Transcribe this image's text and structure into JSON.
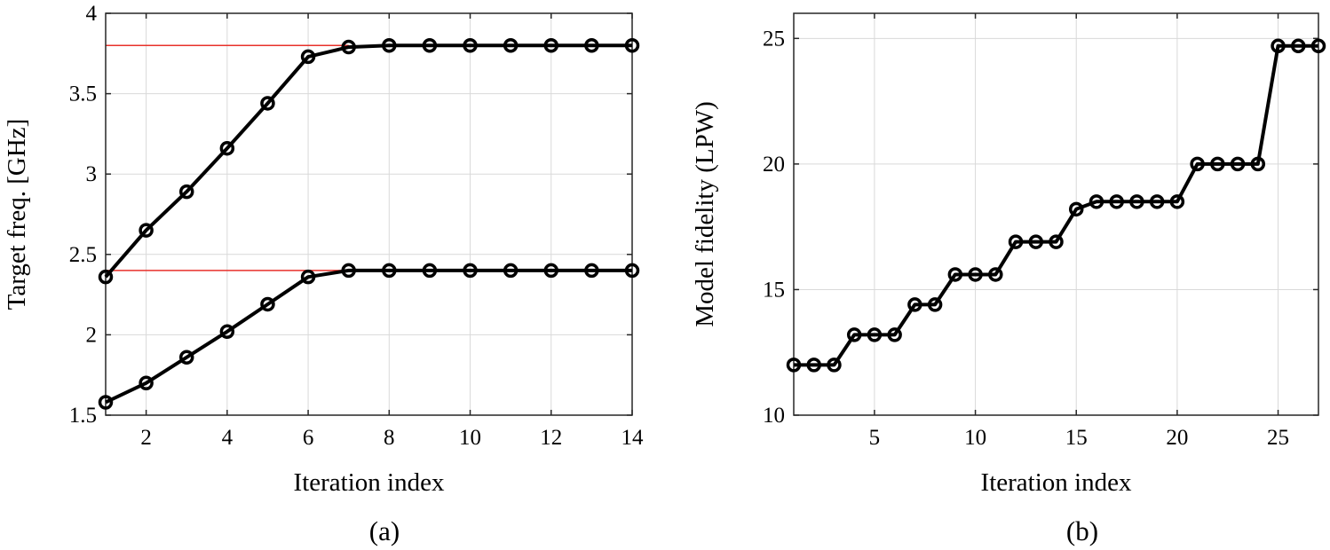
{
  "chart_data": [
    {
      "type": "line",
      "caption": "(a)",
      "xlabel": "Iteration index",
      "ylabel": "Target freq. [GHz]",
      "xlim": [
        1,
        14
      ],
      "ylim": [
        1.5,
        4
      ],
      "xticks": [
        2,
        4,
        6,
        8,
        10,
        12,
        14
      ],
      "yticks": [
        1.5,
        2,
        2.5,
        3,
        3.5,
        4
      ],
      "ytick_labels": [
        "1.5",
        "2",
        "2.5",
        "3",
        "3.5",
        "4"
      ],
      "grid": true,
      "marker": "circle",
      "x": [
        1,
        2,
        3,
        4,
        5,
        6,
        7,
        8,
        9,
        10,
        11,
        12,
        13,
        14
      ],
      "series": [
        {
          "values": [
            2.36,
            2.65,
            2.89,
            3.16,
            3.44,
            3.73,
            3.79,
            3.8,
            3.8,
            3.8,
            3.8,
            3.8,
            3.8,
            3.8
          ]
        },
        {
          "values": [
            1.58,
            1.7,
            1.86,
            2.02,
            2.19,
            2.36,
            2.4,
            2.4,
            2.4,
            2.4,
            2.4,
            2.4,
            2.4,
            2.4
          ]
        }
      ],
      "reference_lines": [
        {
          "y": 3.8,
          "x_range": [
            1,
            7
          ],
          "color": "#e8312a"
        },
        {
          "y": 2.4,
          "x_range": [
            1,
            7
          ],
          "color": "#e8312a"
        }
      ]
    },
    {
      "type": "line",
      "caption": "(b)",
      "xlabel": "Iteration index",
      "ylabel": "Model fidelity (LPW)",
      "xlim": [
        1,
        27
      ],
      "ylim": [
        10,
        26
      ],
      "xticks": [
        5,
        10,
        15,
        20,
        25
      ],
      "yticks": [
        10,
        15,
        20,
        25
      ],
      "ytick_labels": [
        "10",
        "15",
        "20",
        "25"
      ],
      "grid": true,
      "marker": "circle",
      "x": [
        1,
        2,
        3,
        4,
        5,
        6,
        7,
        8,
        9,
        10,
        11,
        12,
        13,
        14,
        15,
        16,
        17,
        18,
        19,
        20,
        21,
        22,
        23,
        24,
        25,
        26,
        27
      ],
      "series": [
        {
          "values": [
            12.0,
            12.0,
            12.0,
            13.2,
            13.2,
            13.2,
            14.4,
            14.4,
            15.6,
            15.6,
            15.6,
            16.9,
            16.9,
            16.9,
            18.2,
            18.5,
            18.5,
            18.5,
            18.5,
            18.5,
            20.0,
            20.0,
            20.0,
            20.0,
            24.7,
            24.7,
            24.7
          ]
        }
      ],
      "reference_lines": []
    }
  ]
}
